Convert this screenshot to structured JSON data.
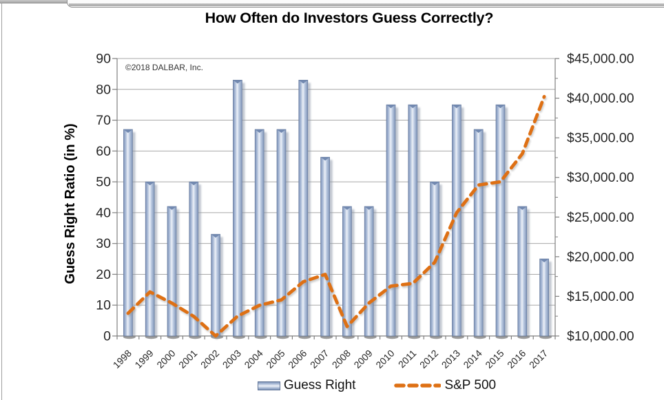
{
  "title": "How Often do Investors Guess Correctly?",
  "copyright": "©2018 DALBAR, Inc.",
  "y_axis": {
    "label": "Guess Right Ratio (in %)",
    "ticks": [
      "0",
      "10",
      "20",
      "30",
      "40",
      "50",
      "60",
      "70",
      "80",
      "90"
    ]
  },
  "y2_axis": {
    "ticks": [
      "$10,000.00",
      "$15,000.00",
      "$20,000.00",
      "$25,000.00",
      "$30,000.00",
      "$35,000.00",
      "$40,000.00",
      "$45,000.00"
    ]
  },
  "legend": [
    {
      "label": "Guess Right",
      "swatch": "bar-cylinder-swatch"
    },
    {
      "label": "S&P 500",
      "swatch": "orange-dash-swatch"
    }
  ],
  "colors": {
    "bar_edge": "#7f94b8",
    "bar_mid": "#edf1f8",
    "bar_outline": "#64789c",
    "bar_top_notch": "#7289b0",
    "line_orange": "#de7014",
    "gridline": "#a8a8a8",
    "axis": "#7f7f7f",
    "tick_text": "#262626",
    "base_shadow": "#6f6f6f"
  },
  "chart_data": {
    "type": "bar",
    "subtype": "bar+line combo, cylinder bars, dashed line on secondary axis",
    "title": "How Often do Investors Guess Correctly?",
    "categories": [
      "1998",
      "1999",
      "2000",
      "2001",
      "2002",
      "2003",
      "2004",
      "2005",
      "2006",
      "2007",
      "2008",
      "2009",
      "2010",
      "2011",
      "2012",
      "2013",
      "2014",
      "2015",
      "2016",
      "2017"
    ],
    "series": [
      {
        "name": "Guess Right",
        "type": "bar",
        "axis": "left",
        "unit": "%",
        "values": [
          67,
          50,
          42,
          50,
          33,
          83,
          67,
          67,
          83,
          58,
          42,
          42,
          75,
          75,
          50,
          75,
          67,
          75,
          42,
          25
        ]
      },
      {
        "name": "S&P 500",
        "type": "line",
        "axis": "right",
        "unit": "USD",
        "values": [
          12860,
          15560,
          14150,
          12470,
          10000,
          12500,
          13870,
          14550,
          16840,
          17770,
          11190,
          14160,
          16290,
          16630,
          19290,
          25540,
          29040,
          29450,
          32990,
          40200
        ]
      }
    ],
    "xlabel": "",
    "ylabel": "Guess Right Ratio (in %)",
    "y2label": "",
    "ylim": [
      0,
      90
    ],
    "y2lim": [
      10000,
      45000
    ],
    "grid": true,
    "legend_position": "bottom",
    "annotation": "©2018 DALBAR, Inc."
  }
}
